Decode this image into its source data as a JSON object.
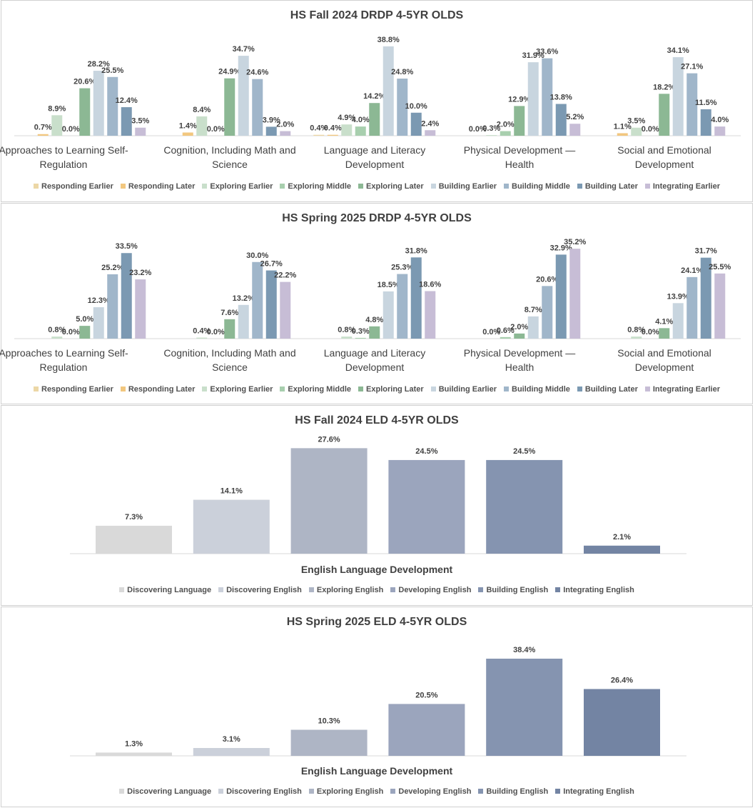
{
  "chart_data": [
    {
      "type": "bar",
      "title": "HS Fall 2024 DRDP 4-5YR OLDS",
      "categories": [
        "Approaches to Learning Self-Regulation",
        "Cognition, Including Math and Science",
        "Language and Literacy Development",
        "Physical Development — Health",
        "Social and Emotional Development"
      ],
      "unit": "%",
      "ylim": [
        0,
        40
      ],
      "grid": false,
      "legend": "bottom",
      "series": [
        {
          "name": "Responding Earlier",
          "color": "#ecd7a6",
          "values": [
            null,
            null,
            0.4,
            null,
            null
          ]
        },
        {
          "name": "Responding Later",
          "color": "#f2c77f",
          "values": [
            0.7,
            1.4,
            0.4,
            0.0,
            1.1
          ]
        },
        {
          "name": "Exploring Earlier",
          "color": "#c9dfcb",
          "values": [
            8.9,
            8.4,
            4.9,
            0.3,
            3.5
          ]
        },
        {
          "name": "Exploring Middle",
          "color": "#a8cfae",
          "values": [
            0.0,
            0.0,
            4.0,
            2.0,
            0.0
          ]
        },
        {
          "name": "Exploring Later",
          "color": "#8cb894",
          "values": [
            20.6,
            24.9,
            14.2,
            12.9,
            18.2
          ]
        },
        {
          "name": "Building Earlier",
          "color": "#c8d5df",
          "values": [
            28.2,
            34.7,
            38.8,
            31.9,
            34.1
          ]
        },
        {
          "name": "Building Middle",
          "color": "#a0b6ca",
          "values": [
            25.5,
            24.6,
            24.8,
            33.6,
            27.1
          ]
        },
        {
          "name": "Building Later",
          "color": "#7b99b2",
          "values": [
            12.4,
            3.9,
            10.0,
            13.8,
            11.5
          ]
        },
        {
          "name": "Integrating Earlier",
          "color": "#c7bdd6",
          "values": [
            3.5,
            2.0,
            2.4,
            5.2,
            4.0
          ]
        }
      ]
    },
    {
      "type": "bar",
      "title": "HS Spring 2025 DRDP 4-5YR OLDS",
      "categories": [
        "Approaches to Learning Self-Regulation",
        "Cognition, Including Math and Science",
        "Language and Literacy Development",
        "Physical Development — Health",
        "Social and Emotional Development"
      ],
      "unit": "%",
      "ylim": [
        0,
        40
      ],
      "grid": false,
      "legend": "bottom",
      "series": [
        {
          "name": "Responding Earlier",
          "color": "#ecd7a6",
          "values": [
            null,
            null,
            null,
            null,
            null
          ]
        },
        {
          "name": "Responding Later",
          "color": "#f2c77f",
          "values": [
            null,
            null,
            null,
            null,
            null
          ]
        },
        {
          "name": "Exploring Earlier",
          "color": "#c9dfcb",
          "values": [
            0.8,
            0.4,
            0.8,
            0.0,
            0.8
          ]
        },
        {
          "name": "Exploring Middle",
          "color": "#a8cfae",
          "values": [
            0.0,
            0.0,
            0.3,
            0.6,
            0.0
          ]
        },
        {
          "name": "Exploring Later",
          "color": "#8cb894",
          "values": [
            5.0,
            7.6,
            4.8,
            2.0,
            4.1
          ]
        },
        {
          "name": "Building Earlier",
          "color": "#c8d5df",
          "values": [
            12.3,
            13.2,
            18.5,
            8.7,
            13.9
          ]
        },
        {
          "name": "Building Middle",
          "color": "#a0b6ca",
          "values": [
            25.2,
            30.0,
            25.3,
            20.6,
            24.1
          ]
        },
        {
          "name": "Building Later",
          "color": "#7b99b2",
          "values": [
            33.5,
            26.7,
            31.8,
            32.9,
            31.7
          ]
        },
        {
          "name": "Integrating Earlier",
          "color": "#c7bdd6",
          "values": [
            23.2,
            22.2,
            18.6,
            35.2,
            25.5
          ]
        }
      ]
    },
    {
      "type": "bar",
      "title": "HS Fall 2024 ELD 4-5YR OLDS",
      "xlabel": "English Language Development",
      "unit": "%",
      "ylim": [
        0,
        30
      ],
      "grid": false,
      "legend": "bottom",
      "series": [
        {
          "name": "Discovering Language",
          "color": "#d9d9d9",
          "values": [
            7.3
          ]
        },
        {
          "name": "Discovering English",
          "color": "#cbd0da",
          "values": [
            14.1
          ]
        },
        {
          "name": "Exploring English",
          "color": "#aeb5c5",
          "values": [
            27.6
          ]
        },
        {
          "name": "Developing English",
          "color": "#9ba5bd",
          "values": [
            24.5
          ]
        },
        {
          "name": "Building English",
          "color": "#8594b0",
          "values": [
            24.5
          ]
        },
        {
          "name": "Integrating English",
          "color": "#7384a3",
          "values": [
            2.1
          ]
        }
      ]
    },
    {
      "type": "bar",
      "title": "HS Spring 2025 ELD 4-5YR OLDS",
      "xlabel": "English Language Development",
      "unit": "%",
      "ylim": [
        0,
        40
      ],
      "grid": false,
      "legend": "bottom",
      "series": [
        {
          "name": "Discovering Language",
          "color": "#d9d9d9",
          "values": [
            1.3
          ]
        },
        {
          "name": "Discovering English",
          "color": "#cbd0da",
          "values": [
            3.1
          ]
        },
        {
          "name": "Exploring English",
          "color": "#aeb5c5",
          "values": [
            10.3
          ]
        },
        {
          "name": "Developing English",
          "color": "#9ba5bd",
          "values": [
            20.5
          ]
        },
        {
          "name": "Building English",
          "color": "#8594b0",
          "values": [
            38.4
          ]
        },
        {
          "name": "Integrating English",
          "color": "#7384a3",
          "values": [
            26.4
          ]
        }
      ]
    }
  ]
}
